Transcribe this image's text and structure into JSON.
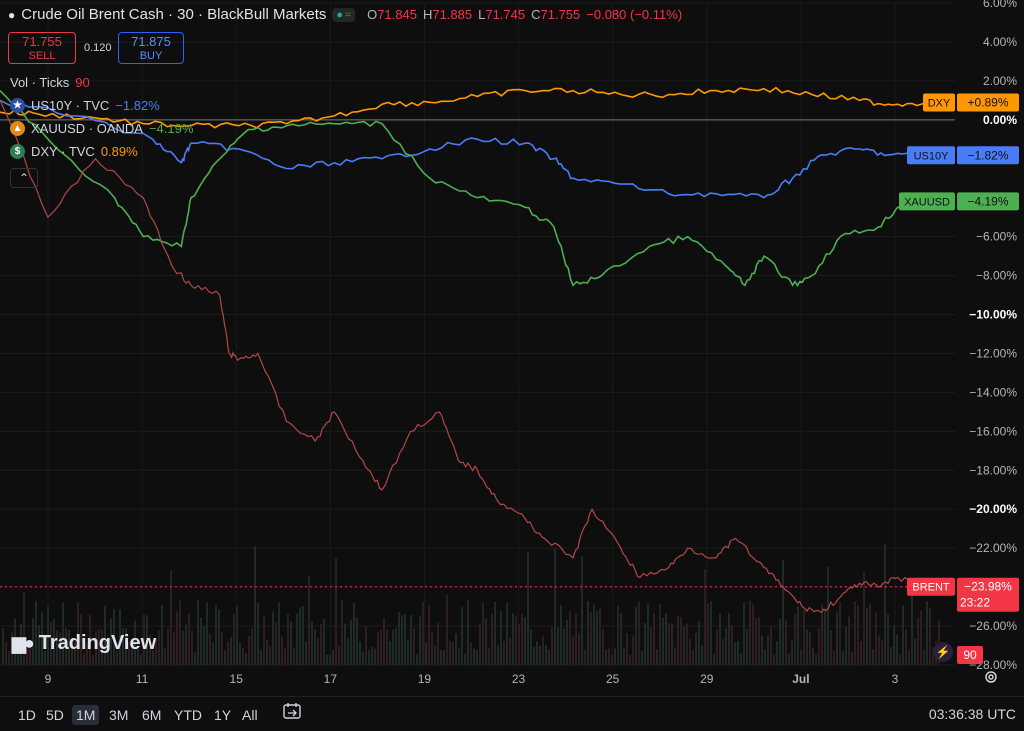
{
  "header": {
    "symbol_title": "Crude Oil Brent Cash · 30 · BlackBull Markets",
    "ohlc": [
      {
        "k": "O",
        "v": "71.845"
      },
      {
        "k": "H",
        "v": "71.885"
      },
      {
        "k": "L",
        "v": "71.745"
      },
      {
        "k": "C",
        "v": "71.755"
      },
      {
        "k": "",
        "v": "−0.080 (−0.11%)"
      }
    ],
    "status_symbol": "≈"
  },
  "trade": {
    "sell_price": "71.755",
    "sell_label": "SELL",
    "spread": "0.120",
    "buy_price": "71.875",
    "buy_label": "BUY"
  },
  "legend": {
    "volume_label": "Vol · Ticks",
    "volume_value": "90",
    "rows": [
      {
        "name": "US10Y · TVC",
        "value": "−1.82%",
        "color": "#4a7cf7",
        "icon": "us-flag-icon"
      },
      {
        "name": "XAUUSD · OANDA",
        "value": "−4.19%",
        "color": "#4caf50",
        "icon": "gold-icon"
      },
      {
        "name": "DXY · TVC",
        "value": "0.89%",
        "color": "#ff9800",
        "icon": "dollar-icon"
      }
    ],
    "collapse_glyph": "⌃"
  },
  "branding": {
    "logo_text": "TradingView"
  },
  "timeframes": [
    "1D",
    "5D",
    "1M",
    "3M",
    "6M",
    "YTD",
    "1Y",
    "All"
  ],
  "active_timeframe": "1M",
  "clock": "03:36:38 UTC",
  "chart_data": {
    "type": "line",
    "x_tick_labels": [
      "9",
      "11",
      "15",
      "17",
      "19",
      "23",
      "25",
      "29",
      "Jul",
      "3"
    ],
    "y_tick_labels": [
      "6.00%",
      "4.00%",
      "2.00%",
      "0.00%",
      "−6.00%",
      "−8.00%",
      "−10.00%",
      "−12.00%",
      "−14.00%",
      "−16.00%",
      "−18.00%",
      "−20.00%",
      "−22.00%",
      "−24.00%",
      "−26.00%",
      "−28.00%"
    ],
    "ylim": [
      -28,
      6
    ],
    "y_unit": "%",
    "xlim": [
      0,
      100
    ],
    "colors": {
      "brent_up": "#26a69a",
      "brent_down": "#ef5350",
      "dxy": "#ff9800",
      "us10y": "#4a7cf7",
      "xauusd": "#4caf50",
      "volume": "#3a2a2a"
    },
    "series": [
      {
        "name": "DXY",
        "value_label": "+0.89%",
        "color": "#ff9800",
        "x": [
          0,
          4,
          10,
          15,
          20,
          25,
          30,
          35,
          40,
          45,
          50,
          55,
          60,
          65,
          70,
          75,
          80,
          85,
          90,
          93,
          97
        ],
        "y": [
          0.4,
          0.3,
          0.1,
          -0.2,
          -0.3,
          -0.3,
          -0.2,
          0.2,
          0.8,
          0.9,
          1.2,
          1.5,
          1.5,
          1.3,
          1.3,
          1.5,
          1.6,
          1.3,
          1.0,
          0.8,
          0.89
        ]
      },
      {
        "name": "US10Y",
        "value_label": "−1.82%",
        "color": "#4a7cf7",
        "x": [
          0,
          8,
          16,
          19,
          20,
          25,
          30,
          35,
          40,
          45,
          50,
          55,
          58,
          60,
          65,
          70,
          75,
          80,
          83,
          86,
          90,
          93,
          97
        ],
        "y": [
          1.0,
          0.2,
          -1.0,
          -2.2,
          -1.2,
          -1.5,
          -2.5,
          -2.2,
          -2.0,
          -1.5,
          -1.0,
          -1.2,
          -2.0,
          -3.0,
          -3.3,
          -3.8,
          -3.8,
          -4.0,
          -3.0,
          -1.8,
          -1.5,
          -1.8,
          -1.82
        ]
      },
      {
        "name": "XAUUSD",
        "value_label": "−4.19%",
        "color": "#4caf50",
        "x": [
          0,
          6,
          12,
          15,
          19,
          20,
          23,
          26,
          30,
          35,
          40,
          45,
          50,
          55,
          58,
          60,
          63,
          68,
          72,
          76,
          78,
          80,
          83,
          85,
          88,
          92,
          94,
          97
        ],
        "y": [
          1.5,
          -1.5,
          -4.0,
          -6.0,
          -6.5,
          -4.0,
          -2.0,
          -0.5,
          -0.3,
          -0.2,
          -0.2,
          -3.0,
          -4.0,
          -4.5,
          -5.5,
          -8.5,
          -8.0,
          -6.5,
          -6.0,
          -7.5,
          -8.5,
          -7.0,
          -8.5,
          -8.0,
          -6.0,
          -5.5,
          -4.5,
          -4.19
        ]
      },
      {
        "name": "BRENT",
        "value_label": "−23.98%",
        "countdown": "23:22",
        "color": "#ef5350",
        "x": [
          0,
          5,
          10,
          15,
          18,
          20,
          23,
          24,
          25,
          27,
          30,
          33,
          35,
          38,
          40,
          43,
          46,
          48,
          50,
          52,
          55,
          57,
          60,
          62,
          65,
          67,
          70,
          72,
          75,
          77,
          80,
          82,
          84,
          86,
          88,
          90,
          92,
          94,
          97
        ],
        "y": [
          1.0,
          -5.0,
          -2.0,
          -4.0,
          -7.5,
          -8.5,
          -9.0,
          -12.0,
          -12.3,
          -12.0,
          -15.5,
          -16.5,
          -15.0,
          -17.5,
          -19.0,
          -16.0,
          -15.0,
          -17.5,
          -18.0,
          -19.5,
          -20.5,
          -21.5,
          -22.5,
          -20.0,
          -22.0,
          -23.5,
          -23.0,
          -22.0,
          -22.5,
          -21.5,
          -23.0,
          -24.0,
          -25.0,
          -25.3,
          -24.5,
          -23.8,
          -24.0,
          -23.5,
          -23.98
        ]
      }
    ],
    "volume_label": "90"
  }
}
